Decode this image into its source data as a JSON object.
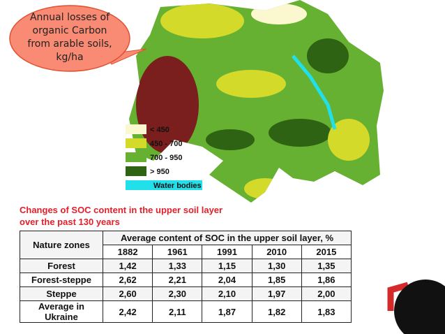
{
  "callout": "Annual losses of organic Carbon from arable soils, kg/ha",
  "legend": [
    {
      "label": "< 450",
      "color": "#fbf8d0"
    },
    {
      "label": "450 - 700",
      "color": "#d4da2a"
    },
    {
      "label": "700 - 950",
      "color": "#66b032"
    },
    {
      "label": "> 950",
      "color": "#2d6312"
    },
    {
      "label": "Water bodies",
      "color": "#22e0ea"
    }
  ],
  "caption": "Changes of SOC content in the upper soil layer over the past 130 years",
  "table": {
    "zone_header": "Nature zones",
    "group_header": "Average content of SOC in the upper soil layer, %",
    "years": [
      "1882",
      "1961",
      "1991",
      "2010",
      "2015"
    ],
    "rows": [
      [
        "Forest",
        "1,42",
        "1,33",
        "1,15",
        "1,30",
        "1,35"
      ],
      [
        "Forest-steppe",
        "2,62",
        "2,21",
        "2,04",
        "1,85",
        "1,86"
      ],
      [
        "Steppe",
        "2,60",
        "2,30",
        "2,10",
        "1,97",
        "2,00"
      ],
      [
        "Average in Ukraine",
        "2,42",
        "2,11",
        "1,87",
        "1,82",
        "1,83"
      ]
    ]
  }
}
